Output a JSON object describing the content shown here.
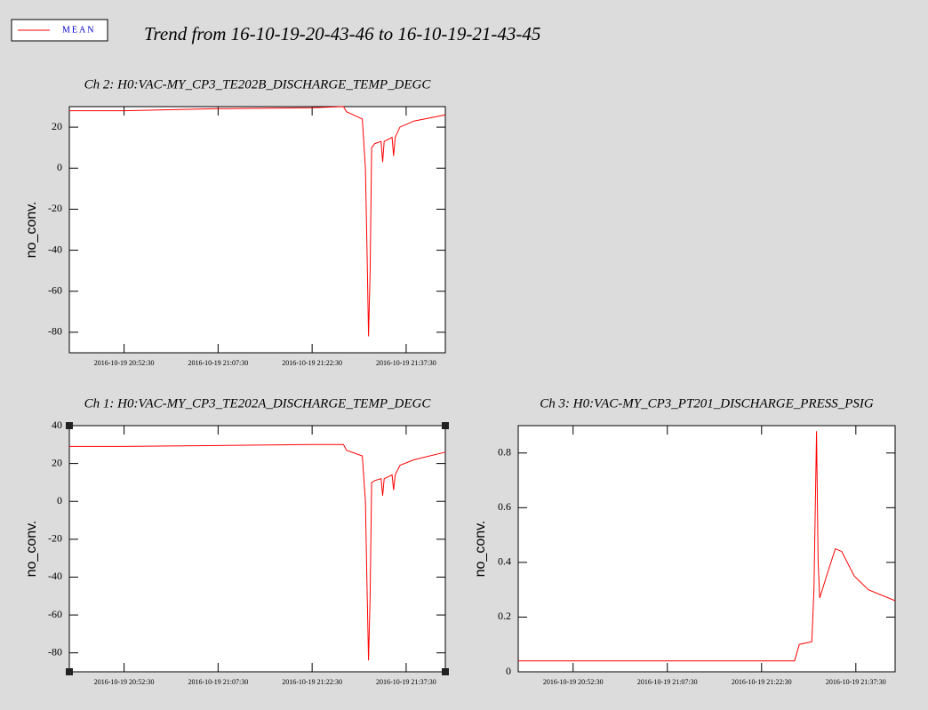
{
  "legend": {
    "entries": [
      {
        "name": "MEAN",
        "color": "#ff0000"
      }
    ]
  },
  "title": "Trend from 16-10-19-20-43-46 to 16-10-19-21-43-45",
  "chart_data": [
    {
      "type": "line",
      "title": "Ch 2: H0:VAC-MY_CP3_TE202B_DISCHARGE_TEMP_DEGC",
      "y_label": "no_conv.",
      "x": [
        "2016-10-19 20:43:46",
        "2016-10-19 20:52:30",
        "2016-10-19 21:07:30",
        "2016-10-19 21:22:30",
        "2016-10-19 21:27:30",
        "2016-10-19 21:28:00",
        "2016-10-19 21:30:30",
        "2016-10-19 21:31:00",
        "2016-10-19 21:31:15",
        "2016-10-19 21:31:30",
        "2016-10-19 21:31:45",
        "2016-10-19 21:32:00",
        "2016-10-19 21:32:30",
        "2016-10-19 21:33:30",
        "2016-10-19 21:33:45",
        "2016-10-19 21:34:00",
        "2016-10-19 21:35:15",
        "2016-10-19 21:35:30",
        "2016-10-19 21:35:45",
        "2016-10-19 21:36:30",
        "2016-10-19 21:38:45",
        "2016-10-19 21:43:45"
      ],
      "series": [
        {
          "name": "MEAN",
          "color": "#ff0000",
          "values": [
            28,
            28,
            29,
            29.5,
            30,
            27.5,
            24,
            0,
            -40,
            -82,
            -50,
            10,
            12,
            13,
            3,
            13,
            15,
            6,
            15,
            20,
            23,
            26
          ]
        }
      ],
      "xlim": [
        "2016-10-19 20:43:46",
        "2016-10-19 21:43:45"
      ],
      "xticks": [
        "2016-10-19 20:52:30",
        "2016-10-19 21:07:30",
        "2016-10-19 21:22:30",
        "2016-10-19 21:37:30"
      ],
      "ylim": [
        -90,
        30
      ],
      "yticks": [
        -80,
        -60,
        -40,
        -20,
        0,
        20
      ]
    },
    {
      "type": "line",
      "title": "Ch 1: H0:VAC-MY_CP3_TE202A_DISCHARGE_TEMP_DEGC",
      "y_label": "no_conv.",
      "x": [
        "2016-10-19 20:43:46",
        "2016-10-19 20:52:30",
        "2016-10-19 21:07:30",
        "2016-10-19 21:22:30",
        "2016-10-19 21:27:30",
        "2016-10-19 21:28:00",
        "2016-10-19 21:30:30",
        "2016-10-19 21:31:00",
        "2016-10-19 21:31:15",
        "2016-10-19 21:31:30",
        "2016-10-19 21:31:45",
        "2016-10-19 21:32:00",
        "2016-10-19 21:32:30",
        "2016-10-19 21:33:30",
        "2016-10-19 21:33:45",
        "2016-10-19 21:34:00",
        "2016-10-19 21:35:15",
        "2016-10-19 21:35:30",
        "2016-10-19 21:35:45",
        "2016-10-19 21:36:30",
        "2016-10-19 21:38:45",
        "2016-10-19 21:43:45"
      ],
      "series": [
        {
          "name": "MEAN",
          "color": "#ff0000",
          "values": [
            29,
            29,
            29.5,
            30,
            30,
            27,
            24,
            0,
            -45,
            -84,
            -50,
            10,
            11,
            12,
            3,
            12,
            14,
            6,
            14,
            19,
            22,
            26
          ]
        }
      ],
      "xlim": [
        "2016-10-19 20:43:46",
        "2016-10-19 21:43:45"
      ],
      "xticks": [
        "2016-10-19 20:52:30",
        "2016-10-19 21:07:30",
        "2016-10-19 21:22:30",
        "2016-10-19 21:37:30"
      ],
      "ylim": [
        -90,
        40
      ],
      "yticks": [
        -80,
        -60,
        -40,
        -20,
        0,
        20,
        40
      ]
    },
    {
      "type": "line",
      "title": "Ch 3: H0:VAC-MY_CP3_PT201_DISCHARGE_PRESS_PSIG",
      "y_label": "no_conv.",
      "x": [
        "2016-10-19 20:43:46",
        "2016-10-19 20:52:30",
        "2016-10-19 21:07:30",
        "2016-10-19 21:22:30",
        "2016-10-19 21:27:45",
        "2016-10-19 21:28:30",
        "2016-10-19 21:30:30",
        "2016-10-19 21:30:50",
        "2016-10-19 21:31:15",
        "2016-10-19 21:31:30",
        "2016-10-19 21:31:45",
        "2016-10-19 21:33:15",
        "2016-10-19 21:34:15",
        "2016-10-19 21:35:15",
        "2016-10-19 21:37:15",
        "2016-10-19 21:39:30",
        "2016-10-19 21:43:45"
      ],
      "series": [
        {
          "name": "MEAN",
          "color": "#ff0000",
          "values": [
            0.04,
            0.04,
            0.04,
            0.04,
            0.04,
            0.1,
            0.11,
            0.3,
            0.88,
            0.4,
            0.27,
            0.38,
            0.45,
            0.44,
            0.35,
            0.3,
            0.26
          ]
        }
      ],
      "xlim": [
        "2016-10-19 20:43:46",
        "2016-10-19 21:43:45"
      ],
      "xticks": [
        "2016-10-19 20:52:30",
        "2016-10-19 21:07:30",
        "2016-10-19 21:22:30",
        "2016-10-19 21:37:30"
      ],
      "ylim": [
        0,
        0.9
      ],
      "yticks": [
        0,
        0.2,
        0.4,
        0.6,
        0.8
      ]
    }
  ]
}
